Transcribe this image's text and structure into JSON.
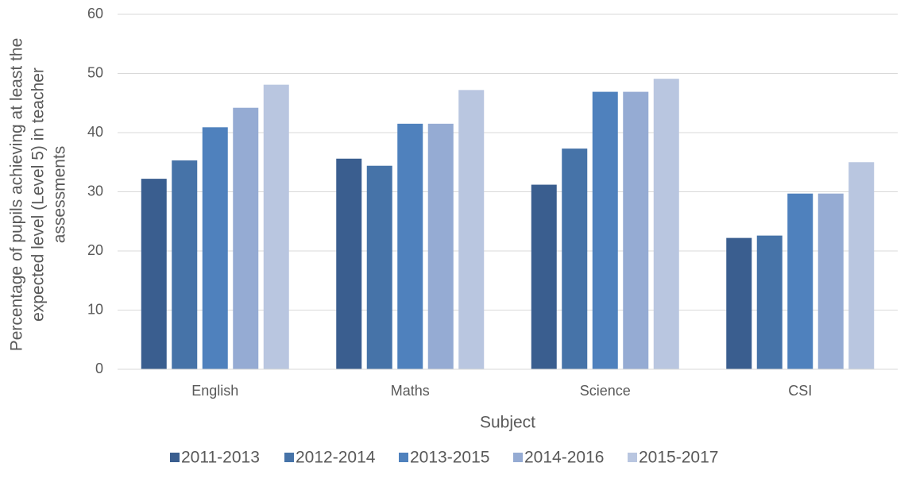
{
  "chart_data": {
    "type": "bar",
    "xlabel": "Subject",
    "ylabel": [
      "Percentage of pupils achieving at least the",
      "expected level (Level 5) in teacher",
      "assessments"
    ],
    "categories": [
      "English",
      "Maths",
      "Science",
      "CSI"
    ],
    "series": [
      {
        "name": "2011-2013",
        "color": "#3a5e8f",
        "values": [
          32.2,
          35.6,
          31.2,
          22.2
        ]
      },
      {
        "name": "2012-2014",
        "color": "#4673a8",
        "values": [
          35.3,
          34.4,
          37.3,
          22.6
        ]
      },
      {
        "name": "2013-2015",
        "color": "#4f81bd",
        "values": [
          40.9,
          41.5,
          46.9,
          29.7
        ]
      },
      {
        "name": "2014-2016",
        "color": "#95abd3",
        "values": [
          44.2,
          41.5,
          46.9,
          29.7
        ]
      },
      {
        "name": "2015-2017",
        "color": "#b9c6e0",
        "values": [
          48.1,
          47.2,
          49.1,
          35.0
        ]
      }
    ],
    "ylim": [
      0,
      60
    ],
    "yticks": [
      0,
      10,
      20,
      30,
      40,
      50,
      60
    ],
    "grid": true,
    "legend": "bottom"
  }
}
